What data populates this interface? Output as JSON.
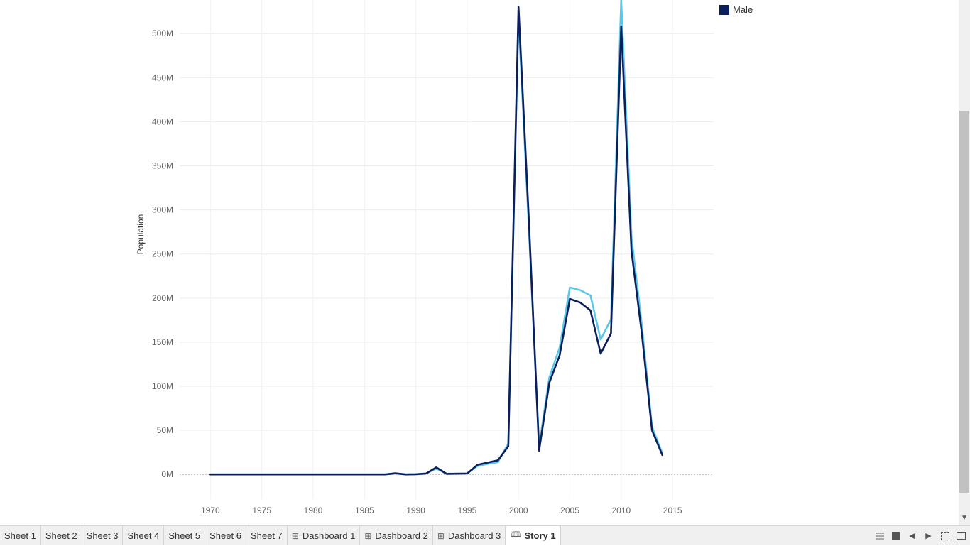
{
  "legend": {
    "label": "Male",
    "color": "#0b1f5c"
  },
  "tabs": [
    {
      "label": "Sheet 1",
      "icon": ""
    },
    {
      "label": "Sheet 2",
      "icon": ""
    },
    {
      "label": "Sheet 3",
      "icon": ""
    },
    {
      "label": "Sheet 4",
      "icon": ""
    },
    {
      "label": "Sheet 5",
      "icon": ""
    },
    {
      "label": "Sheet 6",
      "icon": ""
    },
    {
      "label": "Sheet 7",
      "icon": ""
    },
    {
      "label": "Dashboard 1",
      "icon": "⊞"
    },
    {
      "label": "Dashboard 2",
      "icon": "⊞"
    },
    {
      "label": "Dashboard 3",
      "icon": "⊞"
    },
    {
      "label": "Story 1",
      "icon": "🕮",
      "active": true
    }
  ],
  "chart_data": {
    "type": "line",
    "title": "",
    "xlabel": "",
    "ylabel": "Population",
    "xlim": [
      1967,
      2019
    ],
    "ylim": [
      -28000000,
      538000000
    ],
    "x_ticks": [
      1970,
      1975,
      1980,
      1985,
      1990,
      1995,
      2000,
      2005,
      2010,
      2015
    ],
    "y_ticks": [
      0,
      50000000,
      100000000,
      150000000,
      200000000,
      250000000,
      300000000,
      350000000,
      400000000,
      450000000,
      500000000
    ],
    "y_tick_labels": [
      "0M",
      "50M",
      "100M",
      "150M",
      "200M",
      "250M",
      "300M",
      "350M",
      "400M",
      "450M",
      "500M"
    ],
    "grid": true,
    "legend_position": "top-right",
    "x": [
      1970,
      1971,
      1972,
      1973,
      1974,
      1975,
      1976,
      1977,
      1978,
      1979,
      1980,
      1981,
      1982,
      1983,
      1984,
      1985,
      1986,
      1987,
      1988,
      1989,
      1990,
      1991,
      1992,
      1993,
      1994,
      1995,
      1996,
      1997,
      1998,
      1999,
      2000,
      2001,
      2002,
      2003,
      2004,
      2005,
      2006,
      2007,
      2008,
      2009,
      2010,
      2011,
      2012,
      2013,
      2014
    ],
    "series": [
      {
        "name": "Male",
        "color": "#0b1f5c",
        "values": [
          0,
          0,
          0,
          0,
          0,
          0,
          0,
          0,
          0,
          0,
          0,
          0,
          0,
          0,
          0,
          0,
          0,
          0,
          1200000,
          0,
          300000,
          1000000,
          8000000,
          600000,
          800000,
          1000000,
          11000000,
          13500000,
          16000000,
          32000000,
          530000000,
          290000000,
          27000000,
          104000000,
          135000000,
          199000000,
          195000000,
          186000000,
          137000000,
          160000000,
          508000000,
          253000000,
          160000000,
          50000000,
          22000000
        ]
      },
      {
        "color": "#5bc8e8",
        "values": [
          0,
          0,
          0,
          0,
          0,
          0,
          0,
          0,
          0,
          0,
          0,
          0,
          0,
          0,
          0,
          0,
          0,
          0,
          1500000,
          0,
          300000,
          1200000,
          6500000,
          800000,
          1000000,
          1200000,
          9500000,
          12000000,
          14000000,
          35000000,
          518000000,
          280000000,
          32000000,
          110000000,
          144000000,
          212000000,
          209000000,
          203000000,
          153000000,
          176000000,
          538000000,
          269000000,
          170000000,
          54000000,
          24000000
        ]
      }
    ]
  }
}
